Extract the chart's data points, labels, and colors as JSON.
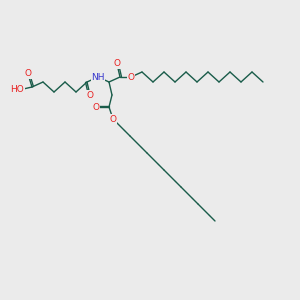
{
  "bg_color": "#ebebeb",
  "bond_color": "#1a5c4a",
  "o_color": "#e82020",
  "n_color": "#3535cc",
  "bond_width": 1.0,
  "font_size": 6.5,
  "fig_size": [
    3.0,
    3.0
  ],
  "dpi": 100,
  "xlim": [
    0,
    300
  ],
  "ylim": [
    0,
    300
  ]
}
